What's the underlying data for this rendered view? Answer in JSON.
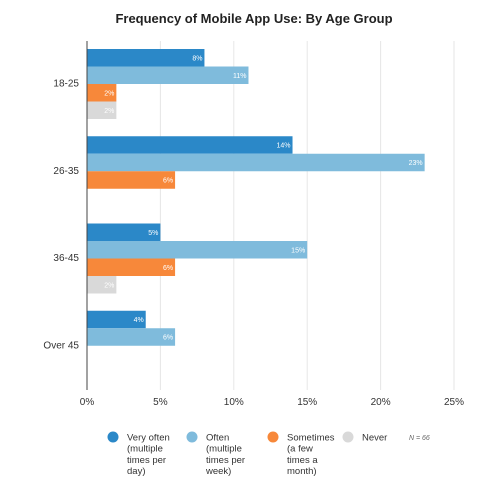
{
  "chart_data": {
    "type": "bar",
    "orientation": "horizontal",
    "title": "Frequency of Mobile App Use: By Age Group",
    "categories": [
      "18-25",
      "26-35",
      "36-45",
      "Over 45"
    ],
    "series": [
      {
        "name": "Very often (multiple times per day)",
        "legend_lines": [
          "Very often",
          "(multiple",
          "times per",
          "day)"
        ],
        "color": "#2b88c8",
        "values": [
          8,
          14,
          5,
          4
        ],
        "labels": [
          "8%",
          "14%",
          "5%",
          "4%"
        ]
      },
      {
        "name": "Often (multiple times per week)",
        "legend_lines": [
          "Often",
          "(multiple",
          "times per",
          "week)"
        ],
        "color": "#7fbbdc",
        "values": [
          11,
          23,
          15,
          6
        ],
        "labels": [
          "11%",
          "23%",
          "15%",
          "6%"
        ]
      },
      {
        "name": "Sometimes (a few times a month)",
        "legend_lines": [
          "Sometimes",
          "(a few",
          "times a",
          "month)"
        ],
        "color": "#f7883a",
        "values": [
          2,
          6,
          6,
          0
        ],
        "labels": [
          "2%",
          "6%",
          "6%",
          ""
        ]
      },
      {
        "name": "Never",
        "legend_lines": [
          "Never"
        ],
        "color": "#d9d9d9",
        "values": [
          2,
          0,
          2,
          0
        ],
        "labels": [
          "2%",
          "",
          "2%",
          ""
        ]
      }
    ],
    "xlim": [
      0,
      25
    ],
    "xticks": [
      0,
      5,
      10,
      15,
      20,
      25
    ],
    "xtick_labels": [
      "0%",
      "5%",
      "10%",
      "15%",
      "20%",
      "25%"
    ],
    "grid": true,
    "legend_position": "bottom",
    "note": "N = 66"
  }
}
